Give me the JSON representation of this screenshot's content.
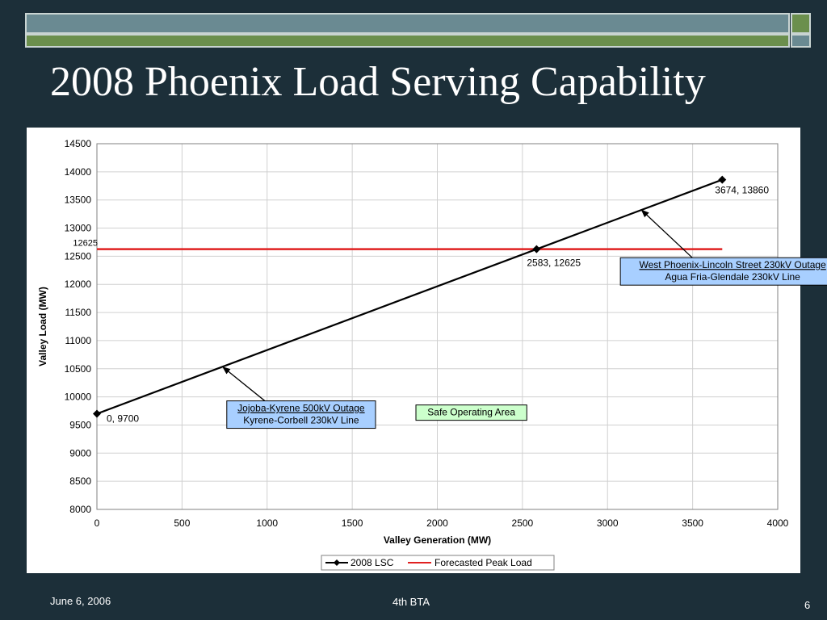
{
  "slide": {
    "title": "2008 Phoenix Load Serving Capability",
    "footer_date": "June 6, 2006",
    "footer_center": "4th BTA",
    "page_number": "6"
  },
  "colors": {
    "background": "#1c2f39",
    "accent_teal": "#6a8a92",
    "accent_green": "#6b8f4d",
    "series_lsc": "#000000",
    "series_peak": "#e02020",
    "callout_blue": "#a8cfff",
    "callout_green": "#ccffcc"
  },
  "chart_data": {
    "type": "line",
    "xlabel": "Valley Generation (MW)",
    "ylabel": "Valley Load (MW)",
    "xlim": [
      0,
      4000
    ],
    "ylim": [
      8000,
      14500
    ],
    "xticks": [
      0,
      500,
      1000,
      1500,
      2000,
      2500,
      3000,
      3500,
      4000
    ],
    "yticks": [
      8000,
      8500,
      9000,
      9500,
      10000,
      10500,
      11000,
      11500,
      12000,
      12500,
      13000,
      13500,
      14000,
      14500
    ],
    "grid": true,
    "legend": "bottom",
    "series": [
      {
        "name": "2008 LSC",
        "marker": "diamond",
        "points": [
          {
            "x": 0,
            "y": 9700,
            "label": "0, 9700"
          },
          {
            "x": 2583,
            "y": 12625,
            "label": "2583, 12625"
          },
          {
            "x": 3674,
            "y": 13860,
            "label": "3674, 13860"
          }
        ]
      },
      {
        "name": "Forecasted Peak Load",
        "marker": "none",
        "points": [
          {
            "x": 0,
            "y": 12625
          },
          {
            "x": 3674,
            "y": 12625
          }
        ],
        "axis_label": "12625"
      }
    ],
    "annotations": [
      {
        "id": "jojoba",
        "lines": [
          "Jojoba-Kyrene 500kV Outage",
          "Kyrene-Corbell 230kV Line"
        ],
        "style": "blue",
        "anchor": {
          "x": 1200,
          "y": 9685
        },
        "arrow_tip": {
          "x": 740,
          "y": 10530
        }
      },
      {
        "id": "west-phoenix",
        "lines": [
          "West Phoenix-Lincoln Street 230kV Outage",
          "Agua Fria-Glendale 230kV Line"
        ],
        "style": "blue",
        "anchor": {
          "x": 3735,
          "y": 12230
        },
        "arrow_tip": {
          "x": 3200,
          "y": 13320
        }
      },
      {
        "id": "safe-area",
        "lines": [
          "Safe Operating Area"
        ],
        "style": "green",
        "anchor": {
          "x": 2200,
          "y": 9720
        }
      }
    ]
  }
}
